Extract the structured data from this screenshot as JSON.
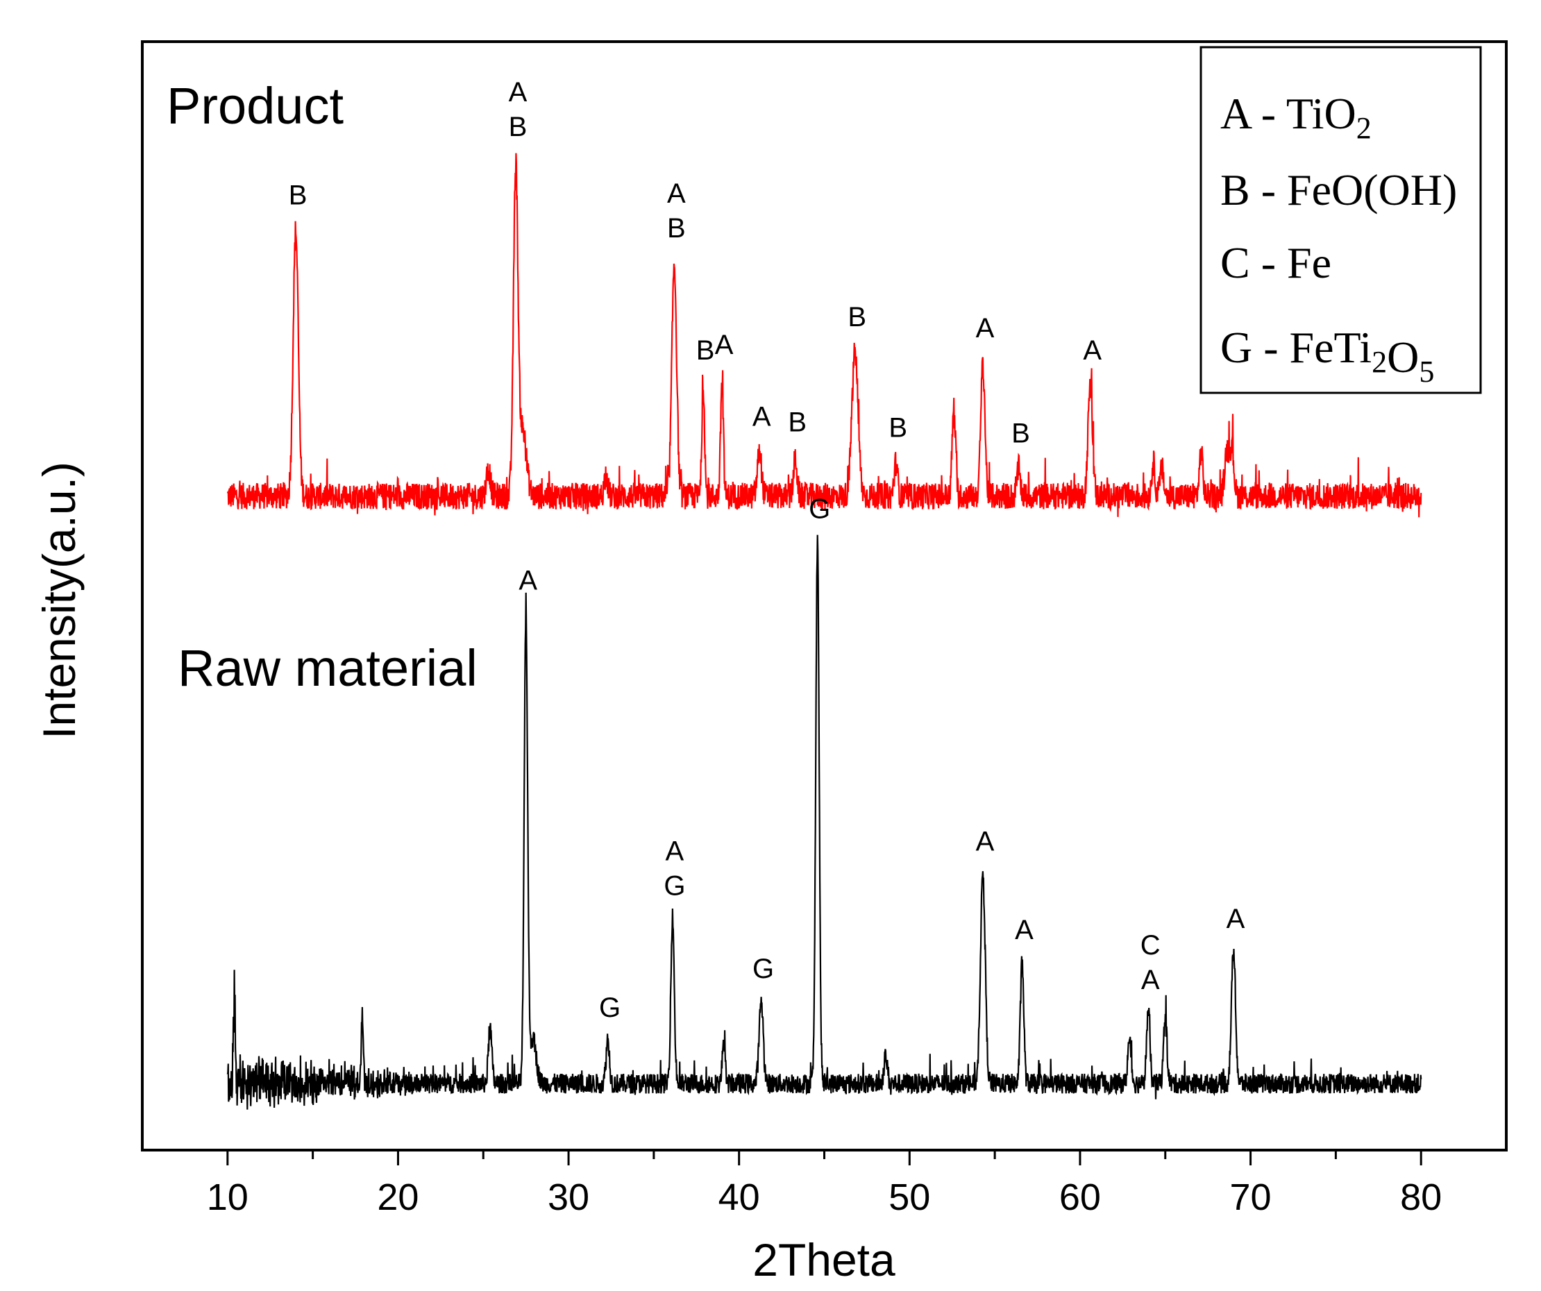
{
  "chart_data": {
    "type": "line",
    "xlabel": "2Theta",
    "ylabel": "Intensity(a.u.)",
    "xlim": [
      5,
      85
    ],
    "ylim": [
      0,
      100
    ],
    "x_ticks": [
      10,
      20,
      30,
      40,
      50,
      60,
      70,
      80
    ],
    "y_ticks_labeled": false,
    "legend": {
      "position": "top-right",
      "entries": [
        {
          "key": "A",
          "formula": [
            {
              "t": "TiO"
            },
            {
              "t": "2",
              "sub": true
            }
          ]
        },
        {
          "key": "B",
          "formula": [
            {
              "t": "FeO(OH)"
            }
          ]
        },
        {
          "key": "C",
          "formula": [
            {
              "t": "Fe"
            }
          ]
        },
        {
          "key": "G",
          "formula": [
            {
              "t": "FeTi"
            },
            {
              "t": "2",
              "sub": true
            },
            {
              "t": "O"
            },
            {
              "t": "5",
              "sub": true
            }
          ]
        }
      ]
    },
    "series": [
      {
        "name": "Product",
        "color": "#ff0000",
        "baseline": 59,
        "noise": 1.2,
        "peaks": [
          {
            "x": 14.0,
            "h": 24,
            "w": 0.15
          },
          {
            "x": 25.3,
            "h": 2.5,
            "w": 0.12
          },
          {
            "x": 26.9,
            "h": 29,
            "w": 0.13
          },
          {
            "x": 27.3,
            "h": 6,
            "w": 0.22
          },
          {
            "x": 32.2,
            "h": 2,
            "w": 0.1
          },
          {
            "x": 36.2,
            "h": 21,
            "w": 0.14
          },
          {
            "x": 37.9,
            "h": 10,
            "w": 0.08
          },
          {
            "x": 39.0,
            "h": 10.5,
            "w": 0.08
          },
          {
            "x": 41.2,
            "h": 4,
            "w": 0.12
          },
          {
            "x": 43.3,
            "h": 3.5,
            "w": 0.1
          },
          {
            "x": 46.8,
            "h": 13,
            "w": 0.18
          },
          {
            "x": 49.2,
            "h": 3,
            "w": 0.1
          },
          {
            "x": 52.6,
            "h": 8,
            "w": 0.1
          },
          {
            "x": 54.3,
            "h": 12,
            "w": 0.12
          },
          {
            "x": 56.4,
            "h": 2.5,
            "w": 0.1
          },
          {
            "x": 60.6,
            "h": 10,
            "w": 0.13
          },
          {
            "x": 64.3,
            "h": 3,
            "w": 0.1
          },
          {
            "x": 64.8,
            "h": 2.5,
            "w": 0.1
          },
          {
            "x": 67.1,
            "h": 4,
            "w": 0.1
          },
          {
            "x": 68.6,
            "h": 4,
            "w": 0.12
          },
          {
            "x": 68.9,
            "h": 4.5,
            "w": 0.12
          }
        ]
      },
      {
        "name": "Raw material",
        "color": "#000000",
        "baseline": 6,
        "noise": 0.9,
        "peaks": [
          {
            "x": 10.4,
            "h": 8,
            "w": 0.06
          },
          {
            "x": 17.9,
            "h": 6,
            "w": 0.06
          },
          {
            "x": 25.4,
            "h": 5,
            "w": 0.1
          },
          {
            "x": 27.5,
            "h": 42,
            "w": 0.1
          },
          {
            "x": 27.9,
            "h": 4,
            "w": 0.2
          },
          {
            "x": 32.3,
            "h": 4,
            "w": 0.1
          },
          {
            "x": 36.1,
            "h": 15,
            "w": 0.1
          },
          {
            "x": 39.1,
            "h": 4,
            "w": 0.08
          },
          {
            "x": 41.3,
            "h": 7.5,
            "w": 0.12
          },
          {
            "x": 44.6,
            "h": 49,
            "w": 0.1
          },
          {
            "x": 48.6,
            "h": 2.5,
            "w": 0.1
          },
          {
            "x": 54.3,
            "h": 19,
            "w": 0.14
          },
          {
            "x": 56.6,
            "h": 11,
            "w": 0.1
          },
          {
            "x": 62.9,
            "h": 4,
            "w": 0.1
          },
          {
            "x": 64.0,
            "h": 6.5,
            "w": 0.1
          },
          {
            "x": 65.0,
            "h": 6,
            "w": 0.1
          },
          {
            "x": 69.0,
            "h": 12,
            "w": 0.12
          }
        ]
      }
    ],
    "series_labels": [
      {
        "text": "Product",
        "series": "Product"
      },
      {
        "text": "Raw material",
        "series": "Raw material"
      }
    ],
    "annotations": [
      {
        "series": "Product",
        "x": 14.0,
        "lines": [
          "B"
        ]
      },
      {
        "series": "Product",
        "x": 26.9,
        "lines": [
          "A",
          "B"
        ]
      },
      {
        "series": "Product",
        "x": 36.2,
        "lines": [
          "A",
          "B"
        ]
      },
      {
        "series": "Product",
        "x": 37.9,
        "lines": [
          "B"
        ]
      },
      {
        "series": "Product",
        "x": 39.0,
        "lines": [
          "A"
        ]
      },
      {
        "series": "Product",
        "x": 41.2,
        "lines": [
          "A"
        ]
      },
      {
        "series": "Product",
        "x": 43.3,
        "lines": [
          "B"
        ]
      },
      {
        "series": "Product",
        "x": 46.8,
        "lines": [
          "B"
        ]
      },
      {
        "series": "Product",
        "x": 49.2,
        "lines": [
          "B"
        ]
      },
      {
        "series": "Product",
        "x": 54.3,
        "lines": [
          "A"
        ]
      },
      {
        "series": "Product",
        "x": 56.4,
        "lines": [
          "B"
        ]
      },
      {
        "series": "Product",
        "x": 60.6,
        "lines": [
          "A"
        ]
      },
      {
        "series": "Raw material",
        "x": 27.5,
        "lines": [
          "A"
        ]
      },
      {
        "series": "Raw material",
        "x": 32.3,
        "lines": [
          "G"
        ]
      },
      {
        "series": "Raw material",
        "x": 36.1,
        "lines": [
          "A",
          "G"
        ]
      },
      {
        "series": "Raw material",
        "x": 41.3,
        "lines": [
          "G"
        ]
      },
      {
        "series": "Raw material",
        "x": 44.6,
        "lines": [
          "G"
        ]
      },
      {
        "series": "Raw material",
        "x": 54.3,
        "lines": [
          "A"
        ]
      },
      {
        "series": "Raw material",
        "x": 56.6,
        "lines": [
          "A"
        ]
      },
      {
        "series": "Raw material",
        "x": 64.0,
        "lines": [
          "C",
          "A"
        ]
      },
      {
        "series": "Raw material",
        "x": 69.0,
        "lines": [
          "A"
        ]
      }
    ]
  }
}
